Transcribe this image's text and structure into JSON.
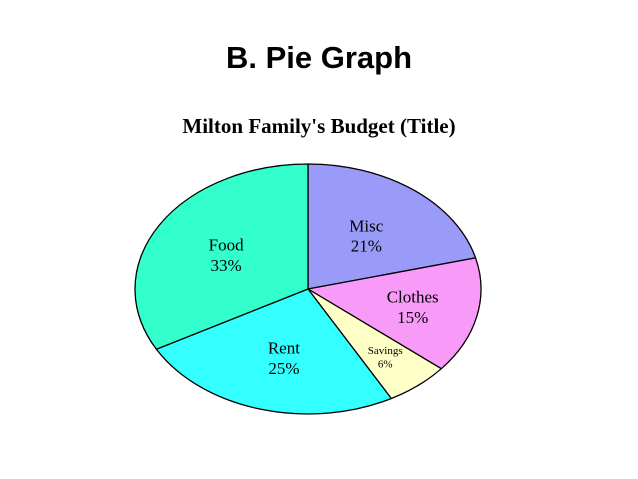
{
  "slide": {
    "title": "B. Pie Graph"
  },
  "chart_data": {
    "type": "pie",
    "title": "Milton Family's Budget (Title)",
    "start_angle_deg": 0,
    "direction": "clockwise",
    "slices": [
      {
        "label": "Misc",
        "value": 21,
        "value_label": "21%",
        "color": "#9a9af8"
      },
      {
        "label": "Clothes",
        "value": 15,
        "value_label": "15%",
        "color": "#f89af8"
      },
      {
        "label": "Savings",
        "value": 6,
        "value_label": "6%",
        "color": "#ffffc8"
      },
      {
        "label": "Rent",
        "value": 25,
        "value_label": "25%",
        "color": "#33ffff"
      },
      {
        "label": "Food",
        "value": 33,
        "value_label": "33%",
        "color": "#33ffcc"
      }
    ]
  }
}
